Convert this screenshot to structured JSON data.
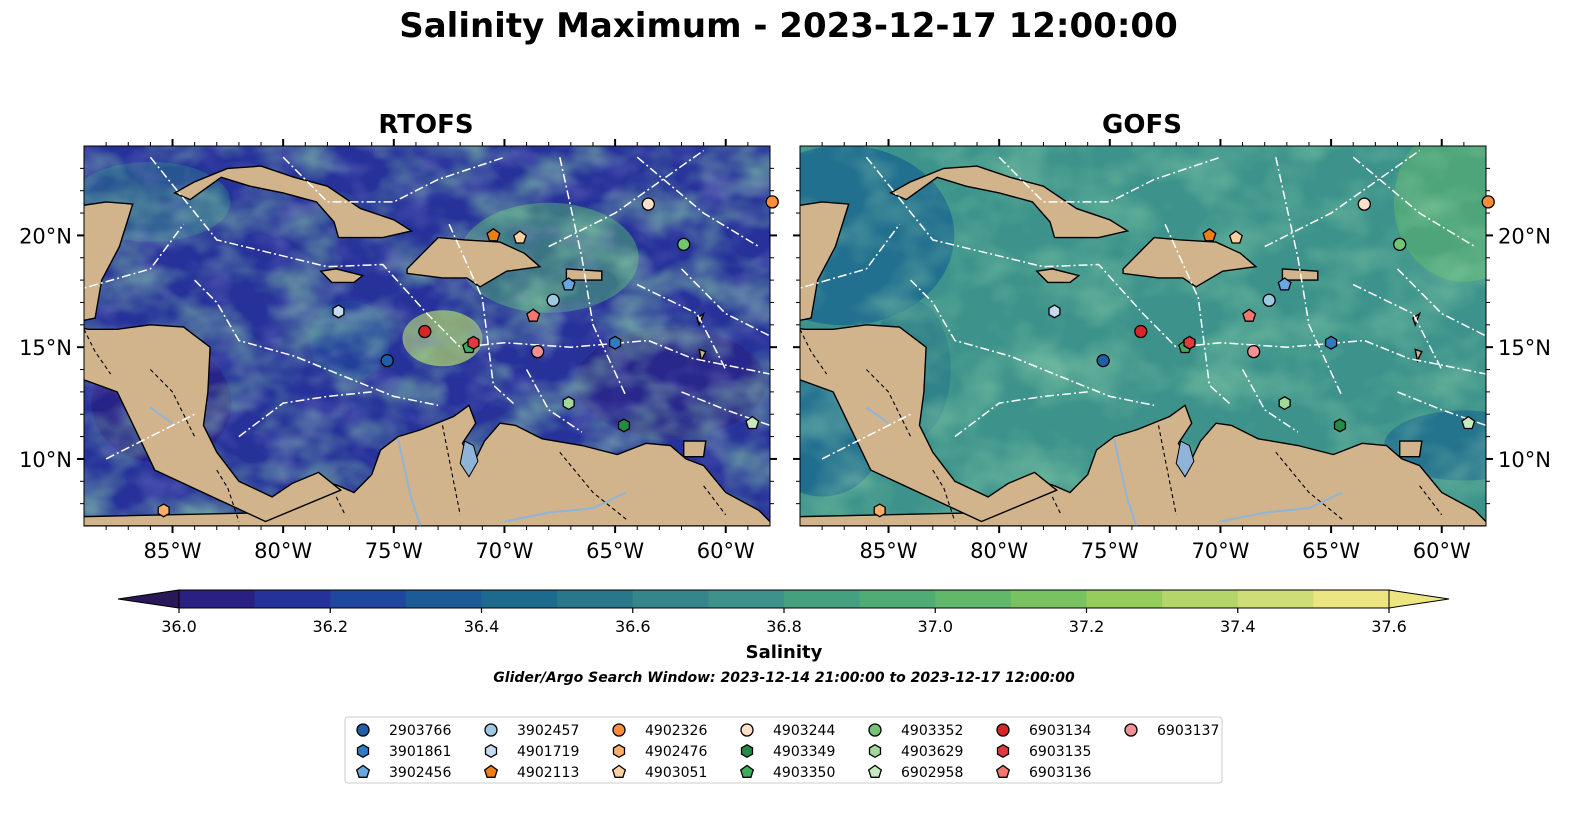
{
  "figure": {
    "title": "Salinity Maximum - 2023-12-17 12:00:00",
    "subtitle": "Glider/Argo Search Window: 2023-12-14 21:00:00 to 2023-12-17 12:00:00"
  },
  "colors": {
    "land": "#d2b48c",
    "rivers": "#8fb4d8",
    "boundary_lines": "#ffffff",
    "coast": "#000000",
    "colormap": [
      "#2a1758",
      "#2a1f82",
      "#26329a",
      "#1f479e",
      "#1a5b98",
      "#1d6a8f",
      "#287889",
      "#35868a",
      "#3d938b",
      "#45a07f",
      "#4fad74",
      "#60b86a",
      "#78c35f",
      "#95cc5b",
      "#b3d56a",
      "#cfdd77",
      "#ede581"
    ]
  },
  "chart_data": [
    {
      "type": "heatmap",
      "title": "RTOFS",
      "xlim": [
        -89,
        -58
      ],
      "ylim": [
        7,
        24
      ],
      "xticks": [
        "85°W",
        "80°W",
        "75°W",
        "70°W",
        "65°W",
        "60°W"
      ],
      "yticks": [
        "20°N",
        "15°N",
        "10°N"
      ],
      "xtick_values": [
        -85,
        -80,
        -75,
        -70,
        -65,
        -60
      ],
      "ytick_values": [
        20,
        15,
        10
      ],
      "colorbar_label": "Salinity"
    },
    {
      "type": "heatmap",
      "title": "GOFS",
      "xlim": [
        -89,
        -58
      ],
      "ylim": [
        7,
        24
      ],
      "xticks": [
        "85°W",
        "80°W",
        "75°W",
        "70°W",
        "65°W",
        "60°W"
      ],
      "yticks": [
        "20°N",
        "15°N",
        "10°N"
      ],
      "xtick_values": [
        -85,
        -80,
        -75,
        -70,
        -65,
        -60
      ],
      "ytick_values": [
        20,
        15,
        10
      ],
      "colorbar_label": "Salinity"
    }
  ],
  "colorbar": {
    "label": "Salinity",
    "min": 35.9,
    "max": 37.6,
    "step": 0.1,
    "ticks": [
      "36.0",
      "36.2",
      "36.4",
      "36.6",
      "36.8",
      "37.0",
      "37.2",
      "37.4",
      "37.6"
    ],
    "tick_values": [
      36.0,
      36.2,
      36.4,
      36.6,
      36.8,
      37.0,
      37.2,
      37.4,
      37.6
    ],
    "extend": "both"
  },
  "floats": [
    {
      "id": "2903766",
      "marker": "circle",
      "color": "#1f5fa8",
      "lon": -75.3,
      "lat": 14.4
    },
    {
      "id": "3901861",
      "marker": "hexagon",
      "color": "#2f7bc4",
      "lon": -65.0,
      "lat": 15.2
    },
    {
      "id": "3902456",
      "marker": "pentagon",
      "color": "#6aa6e0",
      "lon": -67.1,
      "lat": 17.8
    },
    {
      "id": "3902457",
      "marker": "circle",
      "color": "#9ecae1",
      "lon": -67.8,
      "lat": 17.1
    },
    {
      "id": "4901719",
      "marker": "hexagon",
      "color": "#c6dbef",
      "lon": -77.5,
      "lat": 16.6
    },
    {
      "id": "4902113",
      "marker": "pentagon",
      "color": "#f07c16",
      "lon": -70.5,
      "lat": 20.0
    },
    {
      "id": "4902326",
      "marker": "circle",
      "color": "#fd8d3c",
      "lon": -57.9,
      "lat": 21.5
    },
    {
      "id": "4902476",
      "marker": "hexagon",
      "color": "#fdae6b",
      "lon": -85.4,
      "lat": 7.7
    },
    {
      "id": "4903051",
      "marker": "pentagon",
      "color": "#fdd0a2",
      "lon": -69.3,
      "lat": 19.9
    },
    {
      "id": "4903244",
      "marker": "circle",
      "color": "#fde0c8",
      "lon": -63.5,
      "lat": 21.4
    },
    {
      "id": "4903349",
      "marker": "hexagon",
      "color": "#238b45",
      "lon": -64.6,
      "lat": 11.5
    },
    {
      "id": "4903350",
      "marker": "pentagon",
      "color": "#41ab5d",
      "lon": -71.6,
      "lat": 15.0
    },
    {
      "id": "4903352",
      "marker": "circle",
      "color": "#74c476",
      "lon": -61.9,
      "lat": 19.6
    },
    {
      "id": "4903629",
      "marker": "hexagon",
      "color": "#a1d99b",
      "lon": -67.1,
      "lat": 12.5
    },
    {
      "id": "6902958",
      "marker": "pentagon",
      "color": "#c7e9c0",
      "lon": -58.8,
      "lat": 11.6
    },
    {
      "id": "6903134",
      "marker": "circle",
      "color": "#d62728",
      "lon": -73.6,
      "lat": 15.7
    },
    {
      "id": "6903135",
      "marker": "hexagon",
      "color": "#e0393e",
      "lon": -71.4,
      "lat": 15.2
    },
    {
      "id": "6903136",
      "marker": "pentagon",
      "color": "#f4776e",
      "lon": -68.7,
      "lat": 16.4
    },
    {
      "id": "6903137",
      "marker": "circle",
      "color": "#f19095",
      "lon": -68.5,
      "lat": 14.8
    }
  ]
}
